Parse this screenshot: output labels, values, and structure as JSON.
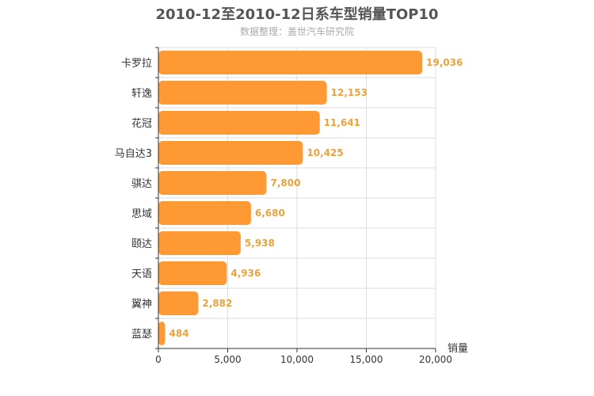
{
  "chart_data": {
    "type": "bar",
    "orientation": "horizontal",
    "title": "2010-12至2010-12日系车型销量TOP10",
    "subtitle": "数据整理：盖世汽车研究院",
    "categories": [
      "卡罗拉",
      "轩逸",
      "花冠",
      "马自达3",
      "骐达",
      "思域",
      "颐达",
      "天语",
      "翼神",
      "蓝瑟"
    ],
    "values": [
      19036,
      12153,
      11641,
      10425,
      7800,
      6680,
      5938,
      4936,
      2882,
      484
    ],
    "value_labels": [
      "19,036",
      "12,153",
      "11,641",
      "10,425",
      "7,800",
      "6,680",
      "5,938",
      "4,936",
      "2,882",
      "484"
    ],
    "xlabel": "销量",
    "ylabel": "",
    "xlim": [
      0,
      20000
    ],
    "x_ticks": [
      0,
      5000,
      10000,
      15000,
      20000
    ],
    "x_tick_labels": [
      "0",
      "5,000",
      "10,000",
      "15,000",
      "20,000"
    ],
    "grid": true,
    "bar_color": "#ff9933",
    "label_color": "#e8a33d"
  }
}
